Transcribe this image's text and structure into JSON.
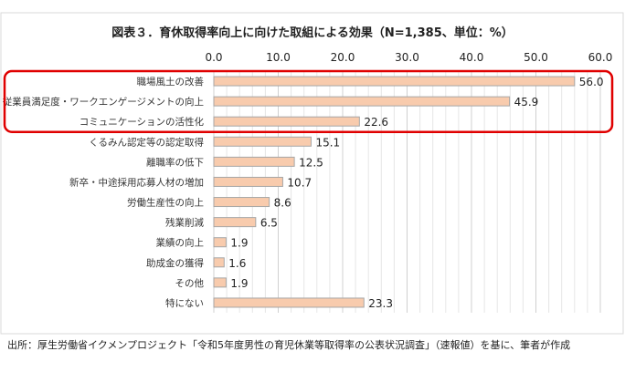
{
  "chart_data": {
    "type": "bar",
    "orientation": "horizontal",
    "title": "図表３．育休取得率向上に向けた取組による効果（N=1,385、単位：%）",
    "xlim": [
      0,
      60
    ],
    "x_ticks": [
      "0.0",
      "10.0",
      "20.0",
      "30.0",
      "40.0",
      "50.0",
      "60.0"
    ],
    "axis_position": "top",
    "grid": true,
    "categories": [
      "職場風土の改善",
      "従業員満足度・ワークエンゲージメントの向上",
      "コミュニケーションの活性化",
      "くるみん認定等の認定取得",
      "離職率の低下",
      "新卒・中途採用応募人材の増加",
      "労働生産性の向上",
      "残業削減",
      "業績の向上",
      "助成金の獲得",
      "その他",
      "特にない"
    ],
    "values": [
      56.0,
      45.9,
      22.6,
      15.1,
      12.5,
      10.7,
      8.6,
      6.5,
      1.9,
      1.6,
      1.9,
      23.3
    ],
    "highlighted_categories": [
      "職場風土の改善",
      "従業員満足度・ワークエンゲージメントの向上",
      "コミュニケーションの活性化"
    ],
    "bar_color": "#f8cbad",
    "bar_border_color": "#a6a6a6",
    "highlight_color": "#e00000"
  },
  "footnote": "出所：厚生労働省イクメンプロジェクト「令和5年度男性の育児休業等取得率の公表状況調査」（速報値）を基に、筆者が作成"
}
